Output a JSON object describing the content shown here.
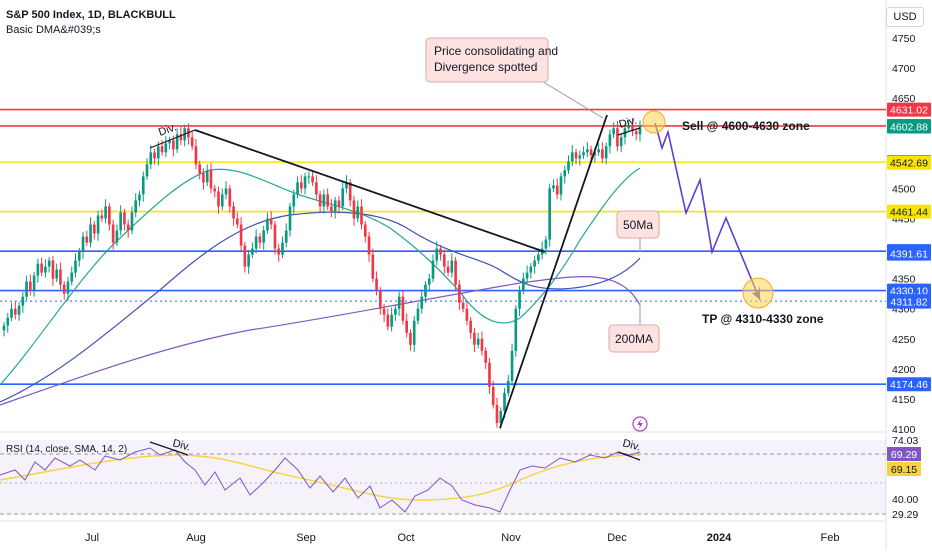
{
  "header": {
    "title": "S&P 500 Index, 1D, BLACKBULL",
    "study": "Basic DMA&#039;s",
    "currency": "USD"
  },
  "rsi": {
    "legend": "RSI (14, close, SMA, 14, 2)",
    "axis_labels": [
      "74.03",
      "40.00",
      "29.29"
    ],
    "value_labels": [
      {
        "text": "69.29",
        "value": 69.29,
        "color": "#7e57c2"
      },
      {
        "text": "69.15",
        "value": 69.15,
        "color": "#f7d23e"
      }
    ],
    "div_label": "Div."
  },
  "annotations": {
    "callout_consolidating": "Price consolidating and Divergence spotted",
    "sell_zone": "Sell @ 4600-4630 zone",
    "tp_zone": "TP @ 4310-4330 zone",
    "label_50ma": "50Ma",
    "label_200ma": "200MA",
    "div_left": "Div.",
    "div_right": "Div."
  },
  "chart_data": {
    "type": "candlestick",
    "title": "S&P 500 Index, 1D, BLACKBULL",
    "x_tick_labels": [
      "Jul",
      "Aug",
      "Sep",
      "Oct",
      "Nov",
      "Dec",
      "2024",
      "Feb"
    ],
    "y_tick_labels": [
      4750,
      4700,
      4650,
      4600,
      4550,
      4500,
      4450,
      4400,
      4350,
      4300,
      4250,
      4200,
      4150,
      4100
    ],
    "ylim": [
      4095,
      4780
    ],
    "grid": false,
    "horizontal_levels": [
      {
        "label": "4631.02",
        "value": 4631.02,
        "color": "#f23645"
      },
      {
        "label": "4603.81",
        "value": 4603.81,
        "color": "#f23645"
      },
      {
        "label": "4543.69",
        "value": 4543.69,
        "color": "#f7e600"
      },
      {
        "label": "4461.44",
        "value": 4461.44,
        "color": "#f7e600"
      },
      {
        "label": "4395.64",
        "value": 4395.64,
        "color": "#2962ff"
      },
      {
        "label": "4330.10",
        "value": 4330.1,
        "color": "#2962ff"
      },
      {
        "label": "4312.64",
        "value": 4312.64,
        "color": "#2962ff"
      },
      {
        "label": "4174.46",
        "value": 4174.46,
        "color": "#2962ff"
      }
    ],
    "price_badges": [
      {
        "label": "4631.02",
        "value": 4631.02,
        "bg": "#f23645",
        "fg": "#ffffff"
      },
      {
        "label": "4603.81",
        "value": 4603.81,
        "bg": "#f23645",
        "fg": "#ffffff"
      },
      {
        "label": "4602.88",
        "value": 4602.88,
        "bg": "#089981",
        "fg": "#ffffff"
      },
      {
        "label": "4543.69",
        "value": 4543.69,
        "bg": "#089981",
        "fg": "#ffffff"
      },
      {
        "label": "4542.69",
        "value": 4542.69,
        "bg": "#f7e600",
        "fg": "#131722"
      },
      {
        "label": "4461.44",
        "value": 4461.44,
        "bg": "#f7e600",
        "fg": "#131722"
      },
      {
        "label": "4395.64",
        "value": 4395.64,
        "bg": "#2962ff",
        "fg": "#ffffff"
      },
      {
        "label": "4391.61",
        "value": 4391.61,
        "bg": "#2962ff",
        "fg": "#ffffff"
      },
      {
        "label": "4330.10",
        "value": 4330.1,
        "bg": "#2962ff",
        "fg": "#ffffff"
      },
      {
        "label": "4312.64",
        "value": 4312.64,
        "bg": "#2962ff",
        "fg": "#ffffff"
      },
      {
        "label": "4311.82",
        "value": 4311.82,
        "bg": "#2962ff",
        "fg": "#ffffff"
      },
      {
        "label": "4174.46",
        "value": 4174.46,
        "bg": "#2962ff",
        "fg": "#ffffff"
      }
    ],
    "colors": {
      "up": "#089981",
      "down": "#f23645",
      "ma_fast": "#26a69a",
      "ma_mid": "#3f51b5",
      "ma_slow": "#7e57c2",
      "projection": "#5b3fd6"
    },
    "closes": [
      4272,
      4285,
      4300,
      4290,
      4305,
      4320,
      4345,
      4330,
      4355,
      4375,
      4360,
      4370,
      4380,
      4350,
      4365,
      4340,
      4325,
      4345,
      4360,
      4380,
      4395,
      4420,
      4410,
      4440,
      4425,
      4455,
      4450,
      4470,
      4440,
      4410,
      4430,
      4460,
      4440,
      4430,
      4460,
      4480,
      4490,
      4520,
      4540,
      4560,
      4550,
      4570,
      4560,
      4575,
      4580,
      4565,
      4590,
      4580,
      4600,
      4585,
      4570,
      4540,
      4525,
      4510,
      4530,
      4500,
      4495,
      4470,
      4490,
      4500,
      4470,
      4450,
      4440,
      4405,
      4370,
      4390,
      4400,
      4420,
      4410,
      4430,
      4450,
      4440,
      4400,
      4390,
      4410,
      4430,
      4470,
      4490,
      4510,
      4500,
      4520,
      4520,
      4510,
      4490,
      4470,
      4490,
      4470,
      4460,
      4480,
      4470,
      4500,
      4510,
      4480,
      4450,
      4470,
      4440,
      4420,
      4390,
      4350,
      4330,
      4300,
      4290,
      4270,
      4290,
      4300,
      4320,
      4280,
      4260,
      4240,
      4280,
      4300,
      4320,
      4340,
      4350,
      4380,
      4400,
      4390,
      4370,
      4360,
      4380,
      4340,
      4310,
      4300,
      4280,
      4260,
      4240,
      4250,
      4230,
      4210,
      4170,
      4140,
      4110,
      4130,
      4160,
      4180,
      4230,
      4300,
      4330,
      4350,
      4360,
      4370,
      4380,
      4390,
      4400,
      4415,
      4500,
      4505,
      4490,
      4520,
      4530,
      4545,
      4560,
      4550,
      4555,
      4560,
      4565,
      4555,
      4560,
      4565,
      4550,
      4570,
      4590,
      4600,
      4570,
      4585,
      4600,
      4605,
      4595,
      4590,
      4605
    ]
  }
}
